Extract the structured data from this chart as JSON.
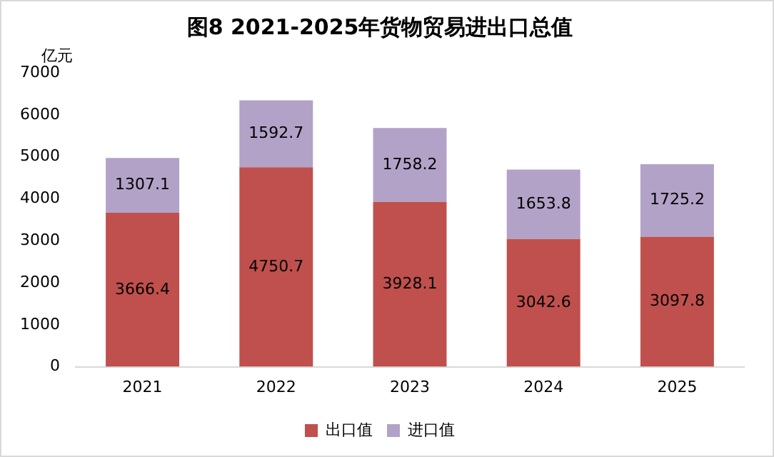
{
  "chart_data": {
    "type": "bar",
    "title": "图8 2021-2025年货物贸易进出口总值",
    "ylabel": "亿元",
    "categories": [
      "2021",
      "2022",
      "2023",
      "2024",
      "2025"
    ],
    "series": [
      {
        "name": "出口值",
        "color": "#c0504d",
        "values": [
          3666.4,
          4750.7,
          3928.1,
          3042.6,
          3097.8
        ]
      },
      {
        "name": "进口值",
        "color": "#b3a2c7",
        "values": [
          1307.1,
          1592.7,
          1758.2,
          1653.8,
          1725.2
        ]
      }
    ],
    "stacked": true,
    "ylim": [
      0,
      7000
    ],
    "yticks": [
      0,
      1000,
      2000,
      3000,
      4000,
      5000,
      6000,
      7000
    ],
    "grid": false,
    "legend": "bottom",
    "data_labels": true
  }
}
